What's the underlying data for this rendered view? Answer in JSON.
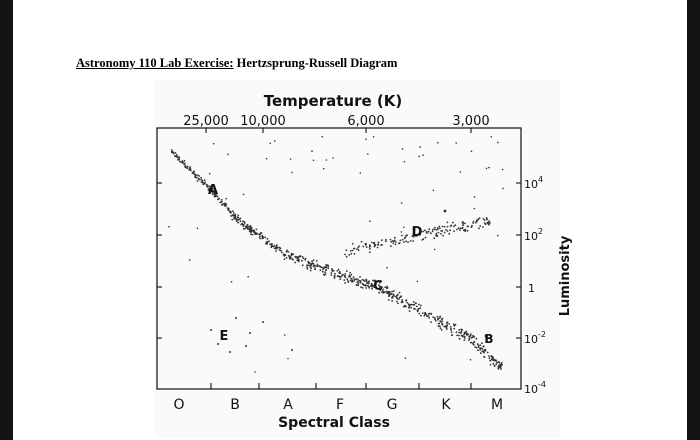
{
  "title": {
    "prefix": "Astronomy 110 Lab Exercise:",
    "suffix": " Hertzsprung-Russell Diagram"
  },
  "diagram": {
    "top_axis_title": "Temperature (K)",
    "top_ticks": [
      "25,000",
      "10,000",
      "6,000",
      "3,000"
    ],
    "bottom_axis_title": "Spectral Class",
    "spectral_classes": [
      "O",
      "B",
      "A",
      "F",
      "G",
      "K",
      "M"
    ],
    "right_axis_title": "Luminosity",
    "luminosity_labels": [
      {
        "base": "10",
        "exp": "4"
      },
      {
        "base": "10",
        "exp": "2"
      },
      {
        "base": "1",
        "exp": ""
      },
      {
        "base": "10",
        "exp": "-2"
      },
      {
        "base": "10",
        "exp": "-4"
      }
    ],
    "point_labels": [
      "A",
      "B",
      "C",
      "D",
      "E"
    ]
  }
}
